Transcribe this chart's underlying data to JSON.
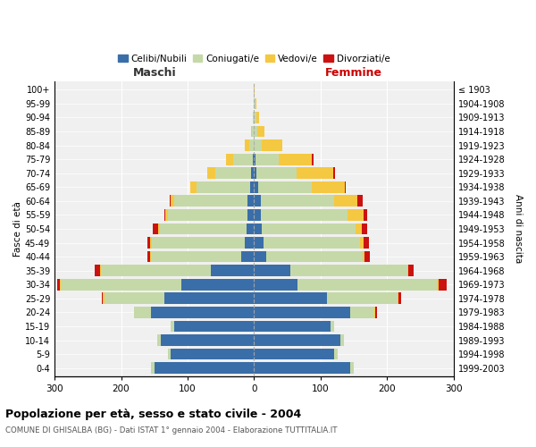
{
  "age_groups": [
    "0-4",
    "5-9",
    "10-14",
    "15-19",
    "20-24",
    "25-29",
    "30-34",
    "35-39",
    "40-44",
    "45-49",
    "50-54",
    "55-59",
    "60-64",
    "65-69",
    "70-74",
    "75-79",
    "80-84",
    "85-89",
    "90-94",
    "95-99",
    "100+"
  ],
  "birth_years": [
    "1999-2003",
    "1994-1998",
    "1989-1993",
    "1984-1988",
    "1979-1983",
    "1974-1978",
    "1969-1973",
    "1964-1968",
    "1959-1963",
    "1954-1958",
    "1949-1953",
    "1944-1948",
    "1939-1943",
    "1934-1938",
    "1929-1933",
    "1924-1928",
    "1919-1923",
    "1914-1918",
    "1909-1913",
    "1904-1908",
    "≤ 1903"
  ],
  "males": {
    "celibe": [
      150,
      125,
      140,
      120,
      155,
      135,
      110,
      65,
      20,
      14,
      12,
      10,
      10,
      6,
      4,
      2,
      0,
      0,
      0,
      0,
      0
    ],
    "coniugato": [
      5,
      5,
      5,
      5,
      25,
      90,
      180,
      165,
      135,
      140,
      130,
      120,
      110,
      80,
      55,
      30,
      8,
      3,
      2,
      0,
      0
    ],
    "vedovo": [
      0,
      0,
      0,
      0,
      0,
      2,
      2,
      2,
      2,
      2,
      2,
      3,
      5,
      10,
      12,
      10,
      6,
      2,
      0,
      0,
      0
    ],
    "divorziato": [
      0,
      0,
      0,
      0,
      0,
      2,
      4,
      8,
      3,
      5,
      8,
      2,
      2,
      0,
      0,
      0,
      0,
      0,
      0,
      0,
      0
    ]
  },
  "females": {
    "nubile": [
      145,
      120,
      130,
      115,
      145,
      110,
      65,
      55,
      18,
      14,
      12,
      10,
      10,
      6,
      4,
      2,
      0,
      0,
      0,
      0,
      0
    ],
    "coniugata": [
      5,
      5,
      5,
      5,
      35,
      105,
      210,
      175,
      145,
      145,
      140,
      130,
      110,
      80,
      60,
      35,
      12,
      5,
      3,
      2,
      0
    ],
    "vedova": [
      0,
      0,
      0,
      0,
      2,
      2,
      2,
      2,
      3,
      5,
      10,
      25,
      35,
      50,
      55,
      50,
      30,
      10,
      5,
      2,
      1
    ],
    "divorziata": [
      0,
      0,
      0,
      0,
      2,
      4,
      12,
      8,
      8,
      8,
      8,
      5,
      8,
      2,
      2,
      2,
      0,
      0,
      0,
      0,
      0
    ]
  },
  "colors": {
    "celibe": "#3a6ea8",
    "coniugato": "#c5d9a8",
    "vedovo": "#f5c842",
    "divorziato": "#cc1111"
  },
  "legend_labels": [
    "Celibi/Nubili",
    "Coniugati/e",
    "Vedovi/e",
    "Divorziati/e"
  ],
  "legend_colors": [
    "#3a6ea8",
    "#c5d9a8",
    "#f5c842",
    "#cc1111"
  ],
  "title": "Popolazione per età, sesso e stato civile - 2004",
  "subtitle": "COMUNE DI GHISALBA (BG) - Dati ISTAT 1° gennaio 2004 - Elaborazione TUTTITALIA.IT",
  "xlabel_left": "Maschi",
  "xlabel_right": "Femmine",
  "ylabel_left": "Fasce di età",
  "ylabel_right": "Anni di nascita",
  "xmin": -300,
  "xmax": 300,
  "bg_color": "#ffffff",
  "plot_bg_color": "#f0f0f0"
}
